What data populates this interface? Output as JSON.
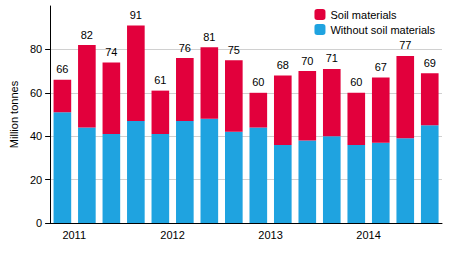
{
  "chart_data": {
    "type": "bar",
    "stacked": true,
    "y_label": "Million tonnes",
    "categories": [
      "2011",
      null,
      null,
      null,
      "2012",
      null,
      null,
      null,
      "2013",
      null,
      null,
      null,
      "2014",
      null,
      null,
      null
    ],
    "series": [
      {
        "name": "Without soil materials",
        "color": "#1fa3e0",
        "values": [
          51,
          44,
          41,
          47,
          41,
          47,
          48,
          42,
          44,
          36,
          38,
          40,
          36,
          37,
          39,
          45
        ]
      },
      {
        "name": "Soil materials",
        "color": "#e2003c",
        "values": [
          15,
          38,
          33,
          44,
          20,
          29,
          33,
          33,
          16,
          32,
          32,
          31,
          24,
          30,
          38,
          24
        ]
      }
    ],
    "totals": [
      66,
      82,
      74,
      91,
      61,
      76,
      81,
      75,
      60,
      68,
      70,
      71,
      60,
      67,
      77,
      69
    ],
    "ylim": [
      0,
      100
    ],
    "yticks": [
      0,
      20,
      40,
      60,
      80
    ],
    "grid": true,
    "legend": "top-right"
  }
}
